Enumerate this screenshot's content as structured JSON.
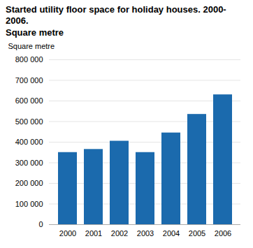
{
  "chart_data": {
    "type": "bar",
    "title": "Started utility floor space for holiday houses. 2000-2006.\nSquare metre",
    "ylabel": "Square metre",
    "categories": [
      "2000",
      "2001",
      "2002",
      "2003",
      "2004",
      "2005",
      "2006"
    ],
    "values": [
      350000,
      365000,
      405000,
      350000,
      445000,
      535000,
      630000
    ],
    "color": "#1b6aad",
    "ylim": [
      0,
      800000
    ],
    "yticks": [
      0,
      {
        "value": 100000,
        "label": "100 000"
      },
      {
        "value": 200000,
        "label": "200 000"
      },
      {
        "value": 300000,
        "label": "300 000"
      },
      {
        "value": 400000,
        "label": "400 000"
      },
      {
        "value": 500000,
        "label": "500 000"
      },
      {
        "value": 600000,
        "label": "600 000"
      },
      {
        "value": 700000,
        "label": "700 000"
      },
      {
        "value": 800000,
        "label": "800 000"
      }
    ],
    "grid": true
  }
}
